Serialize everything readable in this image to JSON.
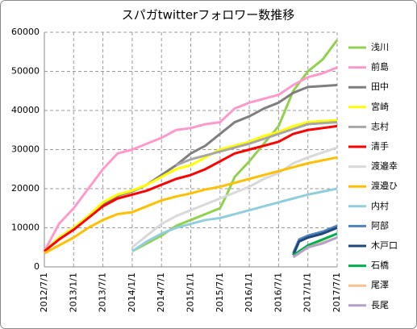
{
  "chart_data": {
    "type": "line",
    "title": "スパガtwitterフォロワー数推移",
    "xlim": [
      2012.5,
      2017.5
    ],
    "xticks": [
      {
        "value": 2012.5,
        "label": "2012/7/1"
      },
      {
        "value": 2013.0,
        "label": "2013/1/1"
      },
      {
        "value": 2013.5,
        "label": "2013/7/1"
      },
      {
        "value": 2014.0,
        "label": "2014/1/1"
      },
      {
        "value": 2014.5,
        "label": "2014/7/1"
      },
      {
        "value": 2015.0,
        "label": "2015/1/1"
      },
      {
        "value": 2015.5,
        "label": "2015/7/1"
      },
      {
        "value": 2016.0,
        "label": "2016/1/1"
      },
      {
        "value": 2016.5,
        "label": "2016/7/1"
      },
      {
        "value": 2017.0,
        "label": "2017/1/1"
      },
      {
        "value": 2017.5,
        "label": "2017/7/1"
      }
    ],
    "ylim": [
      0,
      60000
    ],
    "yticks": [
      0,
      10000,
      20000,
      30000,
      40000,
      50000,
      60000
    ],
    "grid": true,
    "legend": "right",
    "series": [
      {
        "name": "浅川",
        "color": "#92d050",
        "x": [
          2014.0,
          2014.25,
          2014.5,
          2014.75,
          2015.0,
          2015.25,
          2015.5,
          2015.6,
          2015.75,
          2016.0,
          2016.25,
          2016.5,
          2016.75,
          2017.0,
          2017.25,
          2017.5
        ],
        "values": [
          4000,
          6000,
          8000,
          10500,
          12000,
          13500,
          15000,
          18000,
          23000,
          27000,
          31500,
          36000,
          45000,
          50000,
          53000,
          58000
        ]
      },
      {
        "name": "前島",
        "color": "#ff99cc",
        "x": [
          2012.5,
          2012.75,
          2013.0,
          2013.25,
          2013.5,
          2013.75,
          2014.0,
          2014.25,
          2014.5,
          2014.75,
          2015.0,
          2015.25,
          2015.5,
          2015.75,
          2016.0,
          2016.25,
          2016.5,
          2016.75,
          2017.0,
          2017.25,
          2017.5
        ],
        "values": [
          4000,
          11000,
          15000,
          20000,
          25000,
          29000,
          30000,
          31500,
          33000,
          35000,
          35500,
          36500,
          37000,
          40500,
          42000,
          43000,
          44000,
          46500,
          48500,
          49500,
          51000
        ]
      },
      {
        "name": "田中",
        "color": "#7f7f7f",
        "x": [
          2012.5,
          2012.75,
          2013.0,
          2013.25,
          2013.5,
          2013.75,
          2014.0,
          2014.25,
          2014.5,
          2014.75,
          2015.0,
          2015.25,
          2015.5,
          2015.75,
          2016.0,
          2016.25,
          2016.5,
          2016.75,
          2017.0,
          2017.5
        ],
        "values": [
          4000,
          7300,
          9800,
          12800,
          16000,
          18200,
          19300,
          21000,
          23500,
          26000,
          29000,
          31000,
          34000,
          37000,
          38500,
          40500,
          42000,
          44500,
          46000,
          46500
        ]
      },
      {
        "name": "宮崎",
        "color": "#ffff00",
        "x": [
          2012.5,
          2012.75,
          2013.0,
          2013.25,
          2013.5,
          2013.75,
          2014.0,
          2014.25,
          2014.5,
          2014.75,
          2015.0,
          2015.25,
          2015.5,
          2015.75,
          2016.0,
          2016.25,
          2016.5,
          2016.75,
          2017.0,
          2017.5
        ],
        "values": [
          4000,
          7500,
          10000,
          13000,
          16500,
          18500,
          19500,
          21000,
          23000,
          25000,
          26000,
          28000,
          30000,
          31000,
          32000,
          33500,
          34500,
          36000,
          37000,
          37500
        ]
      },
      {
        "name": "志村",
        "color": "#a6a6a6",
        "x": [
          2014.75,
          2015.0,
          2015.25,
          2015.5,
          2015.75,
          2016.0,
          2016.5,
          2017.0,
          2017.5
        ],
        "values": [
          26000,
          27500,
          28500,
          29500,
          30500,
          31500,
          34000,
          36500,
          37000
        ]
      },
      {
        "name": "清手",
        "color": "#ff0000",
        "x": [
          2012.5,
          2012.75,
          2013.0,
          2013.25,
          2013.5,
          2013.75,
          2014.0,
          2014.25,
          2014.5,
          2014.75,
          2015.0,
          2015.25,
          2015.5,
          2015.75,
          2016.0,
          2016.25,
          2016.5,
          2016.75,
          2017.0,
          2017.5
        ],
        "values": [
          4000,
          7000,
          9500,
          12500,
          15500,
          17500,
          18500,
          19500,
          21000,
          22500,
          23500,
          25000,
          27000,
          29000,
          30000,
          31000,
          32000,
          34000,
          35000,
          36000
        ]
      },
      {
        "name": "渡邉幸",
        "color": "#d9d9d9",
        "x": [
          2014.0,
          2014.25,
          2014.5,
          2014.75,
          2015.0,
          2015.25,
          2015.5,
          2015.75,
          2016.0,
          2016.25,
          2016.5,
          2016.75,
          2017.0,
          2017.5
        ],
        "values": [
          5000,
          8000,
          11000,
          13000,
          14500,
          16000,
          17500,
          19000,
          20500,
          22500,
          24000,
          26500,
          28000,
          30500
        ]
      },
      {
        "name": "渡邉ひ",
        "color": "#ffc000",
        "x": [
          2012.5,
          2012.75,
          2013.0,
          2013.25,
          2013.5,
          2013.75,
          2014.0,
          2014.25,
          2014.5,
          2014.75,
          2015.0,
          2015.25,
          2015.5,
          2015.75,
          2016.0,
          2016.25,
          2016.5,
          2016.75,
          2017.0,
          2017.5
        ],
        "values": [
          3500,
          5500,
          7500,
          10000,
          12000,
          13500,
          14000,
          15500,
          17000,
          18000,
          18800,
          19800,
          20500,
          21500,
          22500,
          23500,
          24500,
          25500,
          26500,
          28000
        ]
      },
      {
        "name": "内村",
        "color": "#92cddc",
        "x": [
          2014.0,
          2014.25,
          2014.5,
          2014.75,
          2015.0,
          2015.25,
          2015.5,
          2015.75,
          2016.0,
          2016.25,
          2016.5,
          2016.75,
          2017.0,
          2017.5
        ],
        "values": [
          4000,
          6500,
          8500,
          10000,
          11000,
          12000,
          12500,
          13500,
          14500,
          15500,
          16500,
          17500,
          18500,
          20000
        ]
      },
      {
        "name": "阿部",
        "color": "#4f81bd",
        "x": [
          2016.75,
          2016.85,
          2017.0,
          2017.25,
          2017.5
        ],
        "values": [
          3500,
          7000,
          8000,
          9000,
          10500
        ]
      },
      {
        "name": "木戸口",
        "color": "#1f497d",
        "x": [
          2016.75,
          2016.85,
          2017.0,
          2017.25,
          2017.5
        ],
        "values": [
          3000,
          6500,
          7500,
          8500,
          10000
        ]
      },
      {
        "name": "石橋",
        "color": "#00b050",
        "x": [
          2016.75,
          2017.0,
          2017.25,
          2017.5
        ],
        "values": [
          3000,
          5500,
          7000,
          8500
        ]
      },
      {
        "name": "尾澤",
        "color": "#fac090",
        "x": [
          2016.75,
          2017.0,
          2017.5
        ],
        "values": [
          2500,
          5000,
          7500
        ]
      },
      {
        "name": "長尾",
        "color": "#b3a2c7",
        "x": [
          2016.75,
          2017.0,
          2017.25,
          2017.5
        ],
        "values": [
          2500,
          5000,
          6000,
          7500
        ]
      }
    ]
  }
}
